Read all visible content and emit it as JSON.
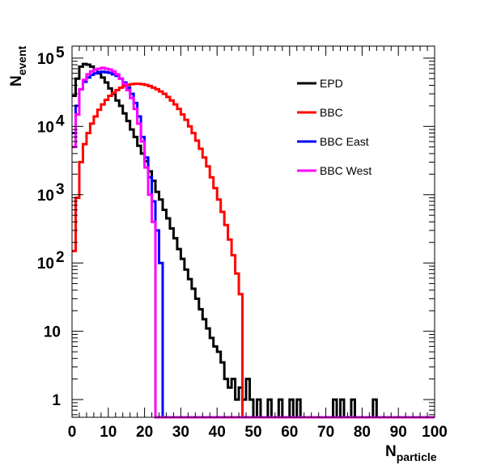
{
  "chart_data": {
    "type": "line",
    "step": true,
    "xlabel": {
      "main": "N",
      "sub": "particle"
    },
    "ylabel": {
      "main": "N",
      "sub": "event"
    },
    "xlim": [
      0,
      100
    ],
    "ylim": [
      0.55,
      150000
    ],
    "yscale": "log",
    "xticks": [
      0,
      10,
      20,
      30,
      40,
      50,
      60,
      70,
      80,
      90,
      100
    ],
    "xtick_labels": [
      "0",
      "10",
      "20",
      "30",
      "40",
      "50",
      "60",
      "70",
      "80",
      "90",
      "100"
    ],
    "yticks": [
      {
        "value": 1,
        "label": "1"
      },
      {
        "value": 10,
        "label": "10"
      },
      {
        "value": 100,
        "label": "10",
        "exp": "2"
      },
      {
        "value": 1000,
        "label": "10",
        "exp": "3"
      },
      {
        "value": 10000,
        "label": "10",
        "exp": "4"
      },
      {
        "value": 100000,
        "label": "10",
        "exp": "5"
      }
    ],
    "grid": false,
    "legend_position": "top-right",
    "series": [
      {
        "name": "EPD",
        "color": "#000000",
        "values": [
          28000,
          50000,
          75000,
          82000,
          80000,
          75000,
          68000,
          60000,
          52000,
          44000,
          36000,
          30000,
          24000,
          20000,
          15500,
          12000,
          9000,
          7000,
          5200,
          4000,
          3100,
          2200,
          1600,
          1100,
          850,
          600,
          450,
          320,
          230,
          160,
          115,
          80,
          58,
          42,
          30,
          21,
          15,
          11,
          8,
          6,
          5,
          3.5,
          2,
          1.5,
          2,
          1,
          1.5,
          1,
          2,
          1,
          0.5,
          1,
          0.5,
          0.5,
          1,
          0.5,
          0.5,
          1,
          0.5,
          0.5,
          1,
          0.5,
          1,
          0.5,
          0.5,
          0.5,
          0.5,
          0.5,
          0.5,
          0.5,
          0.5,
          0.5,
          1,
          0.5,
          1,
          0.5,
          0.5,
          1,
          0.5,
          0.5,
          0.5,
          0.5,
          0.5,
          1,
          0.5,
          0.5,
          0.5,
          0.5,
          0.5,
          0.5,
          0.5,
          0.5,
          0.5,
          0.5,
          0.5,
          0.5,
          0.5,
          0.5,
          0.5,
          0.5
        ]
      },
      {
        "name": "BBC",
        "color": "#ff0000",
        "values": [
          150,
          900,
          3000,
          5500,
          8000,
          11000,
          14000,
          17500,
          21000,
          24500,
          28000,
          31000,
          34000,
          37000,
          39000,
          40500,
          41500,
          42000,
          42000,
          41500,
          40500,
          39000,
          37000,
          35000,
          32500,
          30000,
          27000,
          24000,
          21000,
          18000,
          15000,
          12500,
          10000,
          8000,
          6200,
          4700,
          3500,
          2600,
          1800,
          1250,
          850,
          560,
          360,
          220,
          130,
          70,
          35,
          0.5,
          0.5,
          0.5,
          0.5,
          0.5,
          0.5,
          0.5,
          0.5,
          0.5,
          0.5,
          0.5,
          0.5,
          0.5,
          0.5,
          0.5,
          0.5,
          0.5,
          0.5,
          0.5,
          0.5,
          0.5,
          0.5,
          0.5,
          0.5,
          0.5,
          0.5,
          0.5,
          0.5,
          0.5,
          0.5,
          0.5,
          0.5,
          0.5,
          0.5,
          0.5,
          0.5,
          0.5,
          0.5,
          0.5,
          0.5,
          0.5,
          0.5,
          0.5,
          0.5,
          0.5,
          0.5,
          0.5,
          0.5,
          0.5,
          0.5,
          0.5,
          0.5,
          0.5
        ]
      },
      {
        "name": "BBC East",
        "color": "#0000ff",
        "values": [
          8000,
          20000,
          35000,
          45000,
          52000,
          57000,
          60000,
          62000,
          63000,
          62000,
          61000,
          58000,
          55000,
          50000,
          44000,
          37000,
          30000,
          22000,
          14000,
          7000,
          3500,
          1800,
          800,
          300,
          100,
          0.5,
          0.5,
          0.5,
          0.5,
          0.5,
          0.5,
          0.5,
          0.5,
          0.5,
          0.5,
          0.5,
          0.5,
          0.5,
          0.5,
          0.5,
          0.5,
          0.5,
          0.5,
          0.5,
          0.5,
          0.5,
          0.5,
          0.5,
          0.5,
          0.5,
          0.5,
          0.5,
          0.5,
          0.5,
          0.5,
          0.5,
          0.5,
          0.5,
          0.5,
          0.5,
          0.5,
          0.5,
          0.5,
          0.5,
          0.5,
          0.5,
          0.5,
          0.5,
          0.5,
          0.5,
          0.5,
          0.5,
          0.5,
          0.5,
          0.5,
          0.5,
          0.5,
          0.5,
          0.5,
          0.5,
          0.5,
          0.5,
          0.5,
          0.5,
          0.5,
          0.5,
          0.5,
          0.5,
          0.5,
          0.5,
          0.5,
          0.5,
          0.5,
          0.5,
          0.5,
          0.5,
          0.5,
          0.5,
          0.5,
          0.5
        ]
      },
      {
        "name": "BBC West",
        "color": "#ff00ff",
        "values": [
          5000,
          15000,
          35000,
          48000,
          58000,
          64000,
          68000,
          70000,
          72000,
          70000,
          68000,
          64000,
          58000,
          50000,
          42000,
          34000,
          26000,
          18000,
          11000,
          6000,
          2500,
          1000,
          400,
          0.5,
          0.5,
          0.5,
          0.5,
          0.5,
          0.5,
          0.5,
          0.5,
          0.5,
          0.5,
          0.5,
          0.5,
          0.5,
          0.5,
          0.5,
          0.5,
          0.5,
          0.5,
          0.5,
          0.5,
          0.5,
          0.5,
          0.5,
          0.5,
          0.5,
          0.5,
          0.5,
          0.5,
          0.5,
          0.5,
          0.5,
          0.5,
          0.5,
          0.5,
          0.5,
          0.5,
          0.5,
          0.5,
          0.5,
          0.5,
          0.5,
          0.5,
          0.5,
          0.5,
          0.5,
          0.5,
          0.5,
          0.5,
          0.5,
          0.5,
          0.5,
          0.5,
          0.5,
          0.5,
          0.5,
          0.5,
          0.5,
          0.5,
          0.5,
          0.5,
          0.5,
          0.5,
          0.5,
          0.5,
          0.5,
          0.5,
          0.5,
          0.5,
          0.5,
          0.5,
          0.5,
          0.5,
          0.5,
          0.5,
          0.5,
          0.5,
          0.5
        ]
      }
    ]
  }
}
